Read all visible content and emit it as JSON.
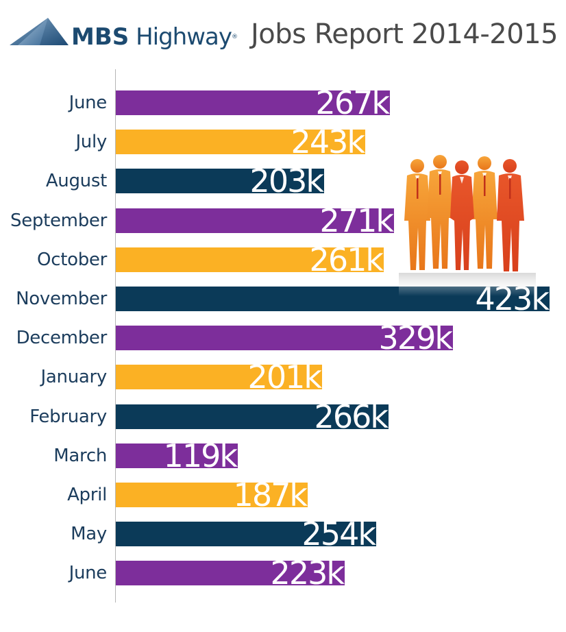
{
  "header": {
    "brand_bold": "MBS",
    "brand_light": "Highway",
    "brand_mark": "®",
    "title": "Jobs Report 2014-2015"
  },
  "colors": {
    "purple": "#7d2e9b",
    "gold": "#fbb124",
    "navy": "#0b3a58",
    "label_text": "#1b3c5c",
    "brand": "#1c4a70",
    "figures_orange": "#f08c1c"
  },
  "icons": [
    "logo-mountain-icon",
    "business-people-icon"
  ],
  "chart_data": {
    "type": "bar",
    "orientation": "horizontal",
    "title": "Jobs Report 2014-2015",
    "xlabel": "",
    "ylabel": "",
    "unit_suffix": "k",
    "grid": false,
    "legend": "none",
    "xlim": [
      0,
      423
    ],
    "categories": [
      "June",
      "July",
      "August",
      "September",
      "October",
      "November",
      "December",
      "January",
      "February",
      "March",
      "April",
      "May",
      "June"
    ],
    "values": [
      267,
      243,
      203,
      271,
      261,
      423,
      329,
      201,
      266,
      119,
      187,
      254,
      223
    ],
    "labels": [
      "267k",
      "243k",
      "203k",
      "271k",
      "261k",
      "423k",
      "329k",
      "201k",
      "266k",
      "119k",
      "187k",
      "254k",
      "223k"
    ],
    "bar_colors": [
      "#7d2e9b",
      "#fbb124",
      "#0b3a58",
      "#7d2e9b",
      "#fbb124",
      "#0b3a58",
      "#7d2e9b",
      "#fbb124",
      "#0b3a58",
      "#7d2e9b",
      "#fbb124",
      "#0b3a58",
      "#7d2e9b"
    ]
  }
}
